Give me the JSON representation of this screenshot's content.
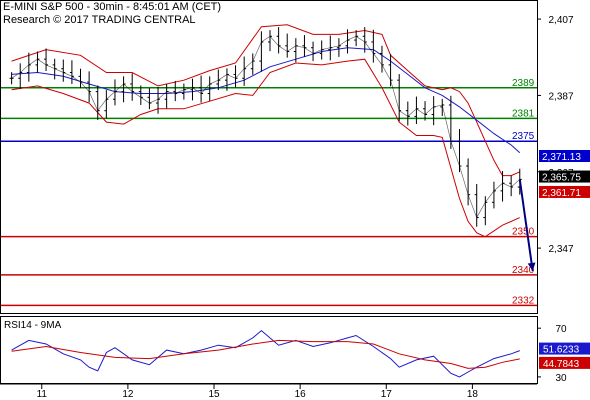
{
  "header": {
    "title": "E-MINI S&P 500 - 30min - 8:45:01 AM (CET)",
    "source": "Research © 2017 TRADING CENTRAL"
  },
  "chart_data": [
    {
      "type": "candlestick",
      "title": "E-MINI S&P 500 - 30min",
      "ylim": [
        2330,
        2412
      ],
      "y_ticks": [
        "2,407",
        "2,387",
        "2,367",
        "2,347"
      ],
      "y_tick_values": [
        2407,
        2387,
        2367,
        2347
      ],
      "x_ticks": [
        "11",
        "12",
        "15",
        "16",
        "17",
        "18"
      ],
      "x_tick_positions": [
        3.5,
        13.5,
        23.5,
        33.5,
        43.5,
        53.5
      ],
      "x_range": [
        -1,
        61
      ],
      "close_series": [
        [
          0,
          2391.5
        ],
        [
          1,
          2393
        ],
        [
          2,
          2395
        ],
        [
          3,
          2396.5
        ],
        [
          4,
          2395
        ],
        [
          5,
          2394
        ],
        [
          6,
          2393
        ],
        [
          7,
          2392
        ],
        [
          8,
          2390.5
        ],
        [
          9,
          2388
        ],
        [
          10,
          2383
        ],
        [
          11,
          2386
        ],
        [
          12,
          2388
        ],
        [
          13,
          2390
        ],
        [
          14,
          2388
        ],
        [
          15,
          2386.5
        ],
        [
          16,
          2385
        ],
        [
          17,
          2386
        ],
        [
          18,
          2388
        ],
        [
          19,
          2387.5
        ],
        [
          20,
          2388.5
        ],
        [
          21,
          2389
        ],
        [
          22,
          2387.5
        ],
        [
          23,
          2390
        ],
        [
          24,
          2391
        ],
        [
          25,
          2392.5
        ],
        [
          26,
          2391.5
        ],
        [
          27,
          2394
        ],
        [
          28,
          2396
        ],
        [
          29,
          2401
        ],
        [
          30,
          2402.5
        ],
        [
          31,
          2400
        ],
        [
          32,
          2398.5
        ],
        [
          33,
          2400
        ],
        [
          34,
          2399.5
        ],
        [
          35,
          2398
        ],
        [
          36,
          2399
        ],
        [
          37,
          2399.5
        ],
        [
          38,
          2400
        ],
        [
          39,
          2401.5
        ],
        [
          40,
          2402.5
        ],
        [
          41,
          2401
        ],
        [
          42,
          2398
        ],
        [
          43,
          2395
        ],
        [
          44,
          2391
        ],
        [
          45,
          2383
        ],
        [
          46,
          2381.5
        ],
        [
          47,
          2383.5
        ],
        [
          48,
          2382
        ],
        [
          49,
          2384
        ],
        [
          50,
          2384.5
        ],
        [
          51,
          2375
        ],
        [
          52,
          2368.5
        ],
        [
          53,
          2361
        ],
        [
          54,
          2355
        ],
        [
          55,
          2359
        ],
        [
          56,
          2362
        ],
        [
          57,
          2364
        ],
        [
          58,
          2363
        ],
        [
          59,
          2365
        ]
      ],
      "bollinger_upper": [
        [
          0,
          2396
        ],
        [
          4,
          2399
        ],
        [
          8,
          2397.5
        ],
        [
          11,
          2393
        ],
        [
          14,
          2393
        ],
        [
          17,
          2389.5
        ],
        [
          20,
          2391
        ],
        [
          23,
          2393.5
        ],
        [
          26,
          2395.5
        ],
        [
          29,
          2405
        ],
        [
          32,
          2405.5
        ],
        [
          35,
          2403
        ],
        [
          38,
          2403
        ],
        [
          41,
          2404
        ],
        [
          43,
          2403
        ],
        [
          44,
          2397.5
        ],
        [
          46,
          2393.5
        ],
        [
          48,
          2389.5
        ],
        [
          50,
          2388.5
        ],
        [
          51,
          2389
        ],
        [
          52,
          2388
        ],
        [
          53,
          2385
        ],
        [
          54,
          2380
        ],
        [
          55,
          2375
        ],
        [
          56,
          2370
        ],
        [
          57,
          2366
        ],
        [
          58,
          2366
        ],
        [
          59,
          2367
        ]
      ],
      "bollinger_lower": [
        [
          0,
          2388.5
        ],
        [
          3,
          2389.5
        ],
        [
          6,
          2387.5
        ],
        [
          9,
          2385
        ],
        [
          11,
          2380
        ],
        [
          13,
          2379.5
        ],
        [
          15,
          2382
        ],
        [
          17,
          2383.5
        ],
        [
          20,
          2383.5
        ],
        [
          23,
          2385.5
        ],
        [
          26,
          2387.5
        ],
        [
          28,
          2387
        ],
        [
          30,
          2393
        ],
        [
          33,
          2395.5
        ],
        [
          36,
          2395
        ],
        [
          39,
          2396
        ],
        [
          41,
          2396.5
        ],
        [
          43,
          2389
        ],
        [
          45,
          2380
        ],
        [
          47,
          2376.5
        ],
        [
          49,
          2376.5
        ],
        [
          50,
          2376
        ],
        [
          51,
          2368
        ],
        [
          52,
          2360
        ],
        [
          53,
          2354
        ],
        [
          54,
          2351
        ],
        [
          55,
          2350
        ],
        [
          57,
          2353
        ],
        [
          59,
          2355
        ]
      ],
      "moving_average": [
        [
          0,
          2392.5
        ],
        [
          3,
          2393
        ],
        [
          6,
          2392
        ],
        [
          9,
          2390
        ],
        [
          12,
          2388
        ],
        [
          15,
          2387.5
        ],
        [
          18,
          2387.5
        ],
        [
          21,
          2388
        ],
        [
          24,
          2389
        ],
        [
          27,
          2391
        ],
        [
          30,
          2394.5
        ],
        [
          33,
          2396.5
        ],
        [
          36,
          2398.5
        ],
        [
          39,
          2399.5
        ],
        [
          42,
          2399
        ],
        [
          44,
          2396
        ],
        [
          46,
          2392.5
        ],
        [
          48,
          2389
        ],
        [
          50,
          2387
        ],
        [
          52,
          2384
        ],
        [
          54,
          2380.5
        ],
        [
          56,
          2377
        ],
        [
          58,
          2374
        ],
        [
          59,
          2372
        ]
      ],
      "horizontal_levels": [
        {
          "value": 2389,
          "label": "2389",
          "color": "#008000"
        },
        {
          "value": 2381,
          "label": "2381",
          "color": "#008000"
        },
        {
          "value": 2375,
          "label": "2375",
          "color": "#0000cd"
        },
        {
          "value": 2350,
          "label": "2350",
          "color": "#cc0000"
        },
        {
          "value": 2340,
          "label": "2340",
          "color": "#cc0000"
        },
        {
          "value": 2332,
          "label": "2332",
          "color": "#cc0000"
        }
      ],
      "price_tags": [
        {
          "value": 2371.13,
          "label": "2,371.13",
          "color": "#0000cd"
        },
        {
          "value": 2365.75,
          "label": "2,365.75",
          "color": "#000000"
        },
        {
          "value": 2361.71,
          "label": "2,361.71",
          "color": "#cc0000"
        }
      ],
      "projection_arrow": {
        "from": [
          59,
          2365
        ],
        "to": [
          60.5,
          2341
        ]
      },
      "colors": {
        "price": "#000000",
        "bollinger": "#cc0000",
        "moving_average": "#1a1acc",
        "support": "#cc0000",
        "resistance": "#008000",
        "pivot": "#0000cd",
        "arrow": "#000080"
      }
    },
    {
      "type": "line",
      "title": "RSI14 - 9MA",
      "ylim": [
        25,
        80
      ],
      "y_ticks": [
        "70",
        "30"
      ],
      "y_tick_values": [
        70,
        30
      ],
      "series": [
        {
          "name": "RSI14",
          "color": "#1a1acc",
          "points": [
            [
              0,
              52
            ],
            [
              2,
              60
            ],
            [
              4,
              57
            ],
            [
              6,
              49
            ],
            [
              8,
              44
            ],
            [
              9,
              38
            ],
            [
              10,
              35
            ],
            [
              11,
              50
            ],
            [
              12,
              54
            ],
            [
              14,
              44
            ],
            [
              16,
              40
            ],
            [
              18,
              52
            ],
            [
              20,
              49
            ],
            [
              22,
              52
            ],
            [
              24,
              56
            ],
            [
              26,
              54
            ],
            [
              28,
              62
            ],
            [
              29,
              68
            ],
            [
              31,
              56
            ],
            [
              33,
              60
            ],
            [
              35,
              55
            ],
            [
              37,
              58
            ],
            [
              39,
              62
            ],
            [
              40,
              64
            ],
            [
              42,
              55
            ],
            [
              44,
              45
            ],
            [
              45,
              38
            ],
            [
              47,
              44
            ],
            [
              49,
              47
            ],
            [
              51,
              33
            ],
            [
              52,
              30
            ],
            [
              53,
              34
            ],
            [
              54,
              38
            ],
            [
              56,
              45
            ],
            [
              58,
              49
            ],
            [
              59,
              51.6
            ]
          ]
        },
        {
          "name": "9MA",
          "color": "#cc0000",
          "points": [
            [
              0,
              51
            ],
            [
              4,
              55
            ],
            [
              8,
              50
            ],
            [
              12,
              46
            ],
            [
              16,
              45
            ],
            [
              20,
              49
            ],
            [
              24,
              52
            ],
            [
              28,
              57
            ],
            [
              31,
              60
            ],
            [
              35,
              59
            ],
            [
              39,
              59
            ],
            [
              42,
              57
            ],
            [
              45,
              49
            ],
            [
              48,
              44
            ],
            [
              51,
              41
            ],
            [
              53,
              37
            ],
            [
              55,
              38
            ],
            [
              57,
              42
            ],
            [
              59,
              44.8
            ]
          ]
        }
      ],
      "value_tags": [
        {
          "value": 51.6233,
          "label": "51.6233",
          "color": "#1a1acc"
        },
        {
          "value": 44.7843,
          "label": "44.7843",
          "color": "#cc0000"
        }
      ]
    }
  ]
}
